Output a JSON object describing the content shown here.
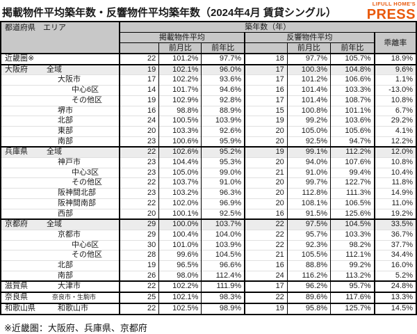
{
  "title": "掲載物件平均築年数・反響物件平均築年数（2024年4月 賃貸シングル）",
  "logo": {
    "small": "LIFULL HOME'S",
    "large": "PRESS"
  },
  "colors": {
    "accent": "#e9590c",
    "header_bg": "#c8c8c8",
    "row_highlight": "#ececec"
  },
  "footnote": "※近畿圏：大阪府、兵庫県、京都府",
  "chart_data": {
    "type": "table",
    "title": "掲載物件平均築年数・反響物件平均築年数（2024年4月 賃貸シングル）",
    "header": {
      "area": "都道府県　エリア",
      "age_group": "築年数（年）",
      "listed": "掲載物件平均",
      "response": "反響物件平均",
      "mom": "前月比",
      "yoy": "前年比",
      "divergence": "乖離率"
    },
    "columns": [
      "都道府県 エリア",
      "掲載物件平均",
      "掲載前月比",
      "掲載前年比",
      "反響物件平均",
      "反響前月比",
      "反響前年比",
      "乖離率"
    ],
    "rows": [
      {
        "pref": "近畿圏※",
        "area": "",
        "lv": 0,
        "shade": false,
        "sec": true,
        "small": false,
        "v": [
          "22",
          "101.2%",
          "97.7%",
          "18",
          "97.7%",
          "105.7%",
          "18.9%"
        ]
      },
      {
        "pref": "大阪府",
        "area": "全域",
        "lv": 1,
        "shade": true,
        "sec": true,
        "small": false,
        "v": [
          "19",
          "102.1%",
          "96.0%",
          "17",
          "100.3%",
          "104.8%",
          "9.6%"
        ]
      },
      {
        "pref": "",
        "area": "大阪市",
        "lv": 2,
        "shade": false,
        "sec": false,
        "small": false,
        "v": [
          "17",
          "102.2%",
          "93.6%",
          "17",
          "101.2%",
          "106.6%",
          "1.1%"
        ]
      },
      {
        "pref": "",
        "area": "中心6区",
        "lv": 3,
        "shade": false,
        "sec": false,
        "small": false,
        "v": [
          "14",
          "101.7%",
          "94.6%",
          "16",
          "101.4%",
          "103.3%",
          "-13.0%"
        ]
      },
      {
        "pref": "",
        "area": "その他区",
        "lv": 3,
        "shade": false,
        "sec": false,
        "small": false,
        "v": [
          "19",
          "102.9%",
          "92.8%",
          "17",
          "101.4%",
          "108.7%",
          "10.8%"
        ]
      },
      {
        "pref": "",
        "area": "堺市",
        "lv": 2,
        "shade": false,
        "sec": false,
        "small": false,
        "v": [
          "16",
          "98.8%",
          "88.9%",
          "15",
          "100.8%",
          "101.1%",
          "6.7%"
        ]
      },
      {
        "pref": "",
        "area": "北部",
        "lv": 2,
        "shade": false,
        "sec": false,
        "small": false,
        "v": [
          "24",
          "100.5%",
          "103.9%",
          "19",
          "99.2%",
          "103.6%",
          "29.2%"
        ]
      },
      {
        "pref": "",
        "area": "東部",
        "lv": 2,
        "shade": false,
        "sec": false,
        "small": false,
        "v": [
          "20",
          "103.3%",
          "92.6%",
          "20",
          "105.0%",
          "105.6%",
          "4.1%"
        ]
      },
      {
        "pref": "",
        "area": "南部",
        "lv": 2,
        "shade": false,
        "sec": false,
        "small": false,
        "v": [
          "23",
          "100.6%",
          "95.9%",
          "20",
          "92.5%",
          "94.7%",
          "12.2%"
        ]
      },
      {
        "pref": "兵庫県",
        "area": "全域",
        "lv": 1,
        "shade": true,
        "sec": true,
        "small": false,
        "v": [
          "22",
          "102.6%",
          "95.2%",
          "19",
          "99.1%",
          "112.2%",
          "12.0%"
        ]
      },
      {
        "pref": "",
        "area": "神戸市",
        "lv": 2,
        "shade": false,
        "sec": false,
        "small": false,
        "v": [
          "23",
          "104.4%",
          "95.3%",
          "20",
          "94.0%",
          "107.6%",
          "10.8%"
        ]
      },
      {
        "pref": "",
        "area": "中心3区",
        "lv": 3,
        "shade": false,
        "sec": false,
        "small": false,
        "v": [
          "23",
          "105.0%",
          "99.0%",
          "21",
          "91.0%",
          "99.4%",
          "10.4%"
        ]
      },
      {
        "pref": "",
        "area": "その他区",
        "lv": 3,
        "shade": false,
        "sec": false,
        "small": false,
        "v": [
          "22",
          "103.7%",
          "91.0%",
          "20",
          "99.7%",
          "122.7%",
          "11.8%"
        ]
      },
      {
        "pref": "",
        "area": "阪神間北部",
        "lv": 2,
        "shade": false,
        "sec": false,
        "small": false,
        "v": [
          "23",
          "103.2%",
          "96.3%",
          "20",
          "112.8%",
          "111.3%",
          "14.9%"
        ]
      },
      {
        "pref": "",
        "area": "阪神間南部",
        "lv": 2,
        "shade": false,
        "sec": false,
        "small": false,
        "v": [
          "22",
          "102.0%",
          "96.9%",
          "20",
          "108.1%",
          "106.5%",
          "11.0%"
        ]
      },
      {
        "pref": "",
        "area": "西部",
        "lv": 2,
        "shade": false,
        "sec": false,
        "small": false,
        "v": [
          "20",
          "100.1%",
          "92.5%",
          "16",
          "91.5%",
          "125.6%",
          "19.2%"
        ]
      },
      {
        "pref": "京都府",
        "area": "全域",
        "lv": 1,
        "shade": true,
        "sec": true,
        "small": false,
        "v": [
          "29",
          "100.0%",
          "103.7%",
          "22",
          "97.5%",
          "104.5%",
          "33.5%"
        ]
      },
      {
        "pref": "",
        "area": "京都市",
        "lv": 2,
        "shade": false,
        "sec": false,
        "small": false,
        "v": [
          "29",
          "100.4%",
          "104.0%",
          "22",
          "95.7%",
          "103.3%",
          "36.7%"
        ]
      },
      {
        "pref": "",
        "area": "中心6区",
        "lv": 3,
        "shade": false,
        "sec": false,
        "small": false,
        "v": [
          "30",
          "101.0%",
          "103.9%",
          "22",
          "92.3%",
          "98.2%",
          "37.7%"
        ]
      },
      {
        "pref": "",
        "area": "その他区",
        "lv": 3,
        "shade": false,
        "sec": false,
        "small": false,
        "v": [
          "28",
          "99.6%",
          "104.5%",
          "21",
          "105.5%",
          "112.1%",
          "34.4%"
        ]
      },
      {
        "pref": "",
        "area": "北部",
        "lv": 2,
        "shade": false,
        "sec": false,
        "small": false,
        "v": [
          "19",
          "96.5%",
          "96.6%",
          "16",
          "88.8%",
          "99.2%",
          "16.0%"
        ]
      },
      {
        "pref": "",
        "area": "南部",
        "lv": 2,
        "shade": false,
        "sec": false,
        "small": false,
        "v": [
          "26",
          "98.0%",
          "112.4%",
          "24",
          "116.2%",
          "113.2%",
          "5.2%"
        ]
      },
      {
        "pref": "滋賀県",
        "area": "大津市",
        "lv": 2,
        "shade": false,
        "sec": true,
        "small": false,
        "v": [
          "22",
          "102.2%",
          "111.9%",
          "17",
          "96.2%",
          "95.7%",
          "24.8%"
        ]
      },
      {
        "pref": "奈良県",
        "area": "奈良市・生駒市",
        "lv": 2,
        "shade": false,
        "sec": true,
        "small": true,
        "v": [
          "25",
          "102.1%",
          "98.3%",
          "22",
          "89.6%",
          "117.6%",
          "13.3%"
        ]
      },
      {
        "pref": "和歌山県",
        "area": "和歌山市",
        "lv": 2,
        "shade": false,
        "sec": true,
        "small": false,
        "v": [
          "22",
          "102.5%",
          "98.9%",
          "19",
          "95.8%",
          "125.7%",
          "14.5%"
        ]
      }
    ]
  }
}
